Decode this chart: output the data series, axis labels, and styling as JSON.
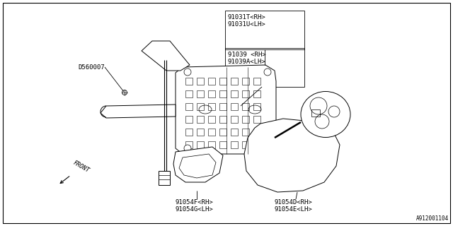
{
  "bg_color": "#ffffff",
  "lc": "#000000",
  "fs": 6.5,
  "part_num_br": "A912001104",
  "label_part1": "91031T<RH>\n91031U<LH>",
  "label_part2": "91039 <RH>\n91039A<LH>",
  "label_part3": "D560007",
  "label_part4": "91054F<RH>\n91054G<LH>",
  "label_part5": "91054D<RH>\n91054E<LH>",
  "label_front": "FRONT"
}
